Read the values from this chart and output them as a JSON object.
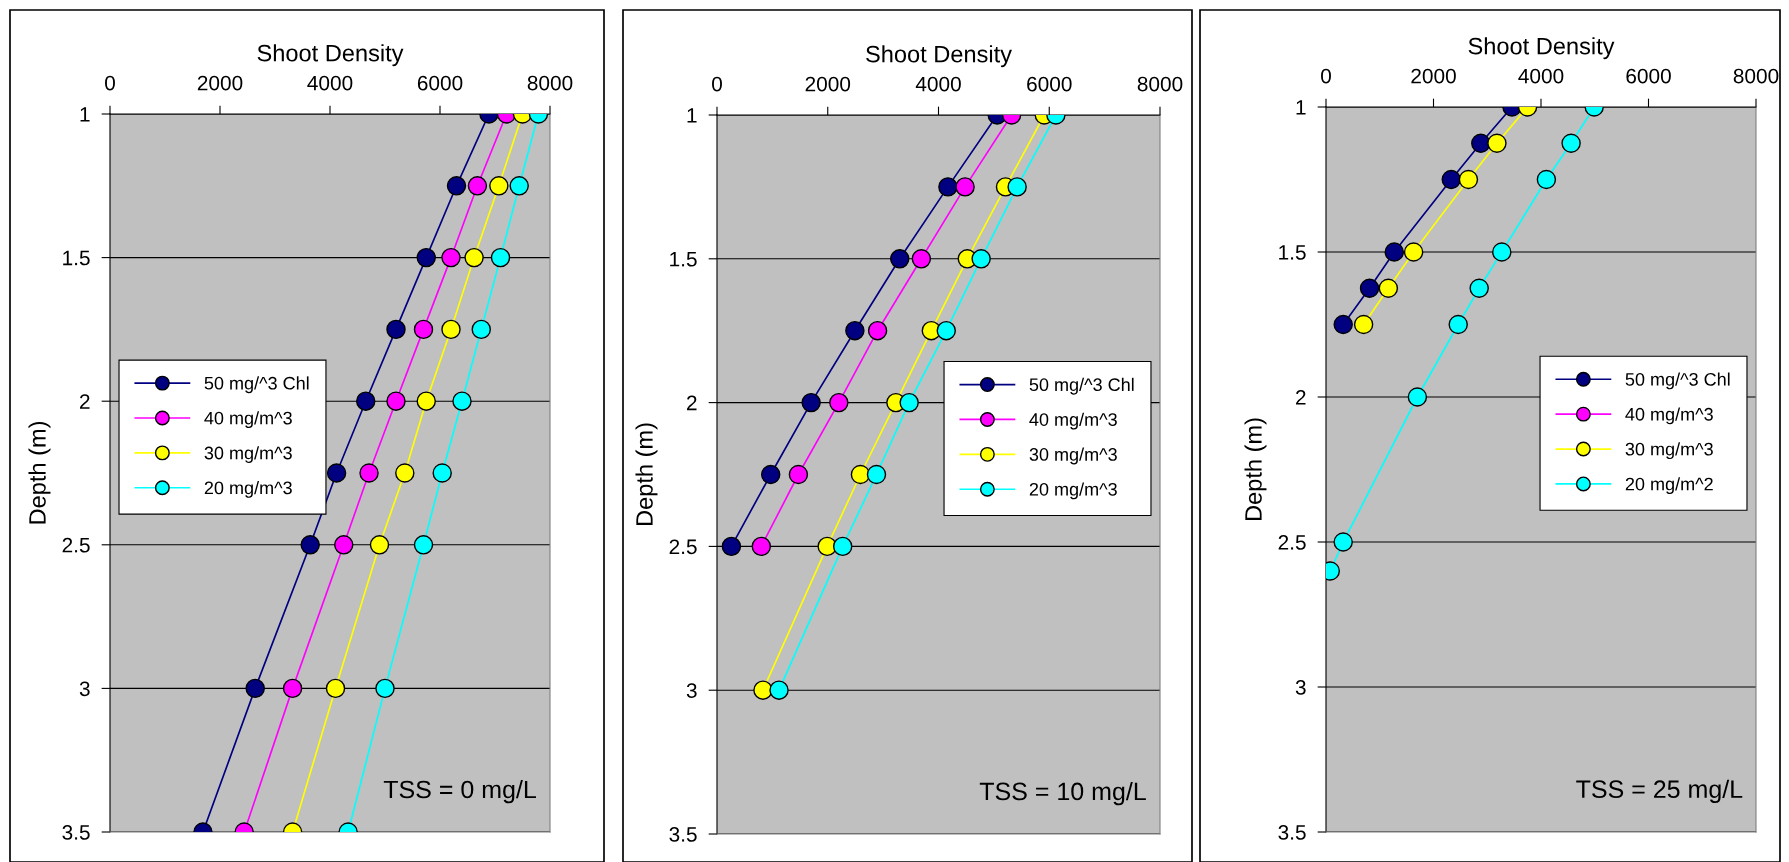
{
  "chart_data": [
    {
      "type": "line",
      "orientation": "horizontal",
      "xlabel": "Shoot Density",
      "ylabel": "Depth (m)",
      "annotations": [
        "TSS = 0 mg/L"
      ],
      "xlim": [
        0,
        8000
      ],
      "xticks": [
        0,
        2000,
        4000,
        6000,
        8000
      ],
      "ylim": [
        3.5,
        1
      ],
      "yticks": [
        1,
        1.5,
        2,
        2.5,
        3,
        3.5
      ],
      "grid": "y",
      "legend": "left",
      "marker": "circle",
      "line_style": "solid",
      "series": [
        {
          "name": "50 mg/^3 Chl",
          "color": "#000080",
          "x": [
            1,
            1.25,
            1.5,
            1.75,
            2,
            2.25,
            2.5,
            3,
            3.5
          ],
          "values": [
            6890,
            6300,
            5750,
            5200,
            4650,
            4120,
            3640,
            2640,
            1690
          ]
        },
        {
          "name": "40 mg/m^3",
          "color": "#ff00ff",
          "x": [
            1,
            1.25,
            1.5,
            1.75,
            2,
            2.25,
            2.5,
            3,
            3.5
          ],
          "values": [
            7210,
            6680,
            6200,
            5700,
            5200,
            4710,
            4250,
            3320,
            2440
          ]
        },
        {
          "name": "30 mg/m^3",
          "color": "#ffff00",
          "x": [
            1,
            1.25,
            1.5,
            1.75,
            2,
            2.25,
            2.5,
            3,
            3.5
          ],
          "values": [
            7500,
            7070,
            6620,
            6200,
            5750,
            5360,
            4900,
            4100,
            3320
          ]
        },
        {
          "name": "20 mg/m^3",
          "color": "#00ffff",
          "x": [
            1,
            1.25,
            1.5,
            1.75,
            2,
            2.25,
            2.5,
            3,
            3.5
          ],
          "values": [
            7790,
            7440,
            7100,
            6750,
            6400,
            6040,
            5700,
            5000,
            4330
          ]
        }
      ]
    },
    {
      "type": "line",
      "orientation": "horizontal",
      "xlabel": "Shoot Density",
      "ylabel": "Depth (m)",
      "annotations": [
        "TSS = 10 mg/L"
      ],
      "xlim": [
        0,
        8000
      ],
      "xticks": [
        0,
        2000,
        4000,
        6000,
        8000
      ],
      "ylim": [
        3.5,
        1
      ],
      "yticks": [
        1,
        1.5,
        2,
        2.5,
        3,
        3.5
      ],
      "grid": "y",
      "legend": "right",
      "marker": "circle",
      "line_style": "solid",
      "series": [
        {
          "name": "50 mg/^3 Chl",
          "color": "#000080",
          "x": [
            1,
            1.25,
            1.5,
            1.75,
            2,
            2.25,
            2.5
          ],
          "values": [
            5060,
            4170,
            3300,
            2490,
            1700,
            970,
            260
          ]
        },
        {
          "name": "40 mg/m^3",
          "color": "#ff00ff",
          "x": [
            1,
            1.25,
            1.5,
            1.75,
            2,
            2.25,
            2.5
          ],
          "values": [
            5320,
            4480,
            3690,
            2900,
            2200,
            1470,
            800
          ]
        },
        {
          "name": "30 mg/m^3",
          "color": "#ffff00",
          "x": [
            1,
            1.25,
            1.5,
            1.75,
            2,
            2.25,
            2.5,
            3
          ],
          "values": [
            5910,
            5210,
            4520,
            3870,
            3230,
            2590,
            1990,
            830
          ]
        },
        {
          "name": "20 mg/m^3",
          "color": "#00ffff",
          "x": [
            1,
            1.25,
            1.5,
            1.75,
            2,
            2.25,
            2.5,
            3
          ],
          "values": [
            6120,
            5420,
            4770,
            4140,
            3470,
            2880,
            2270,
            1120
          ]
        }
      ]
    },
    {
      "type": "line",
      "orientation": "horizontal",
      "xlabel": "Shoot Density",
      "ylabel": "Depth (m)",
      "annotations": [
        "TSS = 25 mg/L"
      ],
      "xlim": [
        0,
        8000
      ],
      "xticks": [
        0,
        2000,
        4000,
        6000,
        8000
      ],
      "ylim": [
        3.5,
        1
      ],
      "yticks": [
        1,
        1.5,
        2,
        2.5,
        3,
        3.5
      ],
      "grid": "y",
      "legend": "right",
      "marker": "circle",
      "line_style": "solid",
      "series": [
        {
          "name": "50 mg/^3 Chl",
          "color": "#000080",
          "x": [
            1,
            1.125,
            1.25,
            1.5,
            1.625,
            1.75
          ],
          "values": [
            3460,
            2880,
            2330,
            1270,
            810,
            320
          ]
        },
        {
          "name": "40 mg/m^3",
          "color": "#ff00ff"
        },
        {
          "name": "30 mg/m^3",
          "color": "#ffff00",
          "x": [
            1,
            1.125,
            1.25,
            1.5,
            1.625,
            1.75
          ],
          "values": [
            3750,
            3180,
            2650,
            1630,
            1160,
            700
          ]
        },
        {
          "name": "20 mg/m^2",
          "color": "#00ffff",
          "x": [
            1,
            1.125,
            1.25,
            1.5,
            1.625,
            1.75,
            2,
            2.5,
            2.6
          ],
          "values": [
            4990,
            4560,
            4100,
            3270,
            2850,
            2460,
            1700,
            320,
            80
          ]
        }
      ]
    }
  ]
}
